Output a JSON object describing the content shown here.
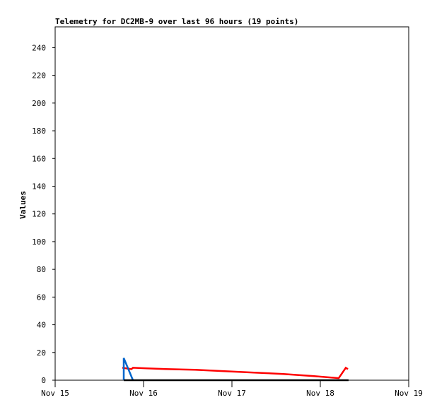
{
  "chart_data": {
    "type": "line",
    "title": "Telemetry for DC2MB-9 over last 96 hours (19 points)",
    "ylabel": "Values",
    "xlabel": "",
    "x_ticks": [
      "Nov 15",
      "Nov 16",
      "Nov 17",
      "Nov 18",
      "Nov 19"
    ],
    "y_ticks": [
      0,
      20,
      40,
      60,
      80,
      100,
      120,
      140,
      160,
      180,
      200,
      220,
      240
    ],
    "ylim": [
      0,
      255
    ],
    "xlim": [
      "Nov 15 00:00",
      "Nov 19 00:00"
    ],
    "grid": false,
    "series": [
      {
        "color": "#ff0000",
        "points": [
          [
            "Nov 15 18:14",
            9
          ],
          [
            "Nov 15 20:44",
            8
          ],
          [
            "Nov 15 21:07",
            9
          ],
          [
            "Nov 16 01:00",
            8.5
          ],
          [
            "Nov 16 06:00",
            8
          ],
          [
            "Nov 16 14:00",
            7.5
          ],
          [
            "Nov 16 22:00",
            6.5
          ],
          [
            "Nov 17 06:00",
            5.5
          ],
          [
            "Nov 17 14:00",
            4.5
          ],
          [
            "Nov 17 22:00",
            3
          ],
          [
            "Nov 18 05:00",
            1.5
          ],
          [
            "Nov 18 06:55",
            9
          ],
          [
            "Nov 18 07:29",
            8
          ]
        ]
      },
      {
        "color": "#0066cc",
        "points": [
          [
            "Nov 15 18:37",
            0
          ],
          [
            "Nov 15 18:37",
            16
          ],
          [
            "Nov 15 21:07",
            0
          ]
        ]
      },
      {
        "color": "#000000",
        "points": [
          [
            "Nov 15 18:37",
            0
          ],
          [
            "Nov 18 07:40",
            0
          ]
        ]
      }
    ]
  }
}
